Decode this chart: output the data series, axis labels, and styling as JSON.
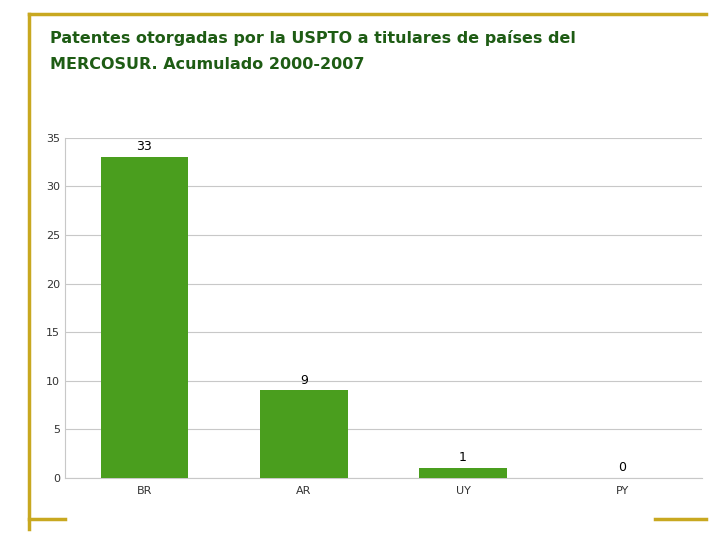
{
  "title_line1": "Patentes otorgadas por la USPTO a titulares de países del",
  "title_line2": "MERCOSUR. Acumulado 2000-2007",
  "categories": [
    "BR",
    "AR",
    "UY",
    "PY"
  ],
  "values": [
    33,
    9,
    1,
    0
  ],
  "bar_color": "#4a9e1e",
  "ylim": [
    0,
    35
  ],
  "yticks": [
    0,
    5,
    10,
    15,
    20,
    25,
    30,
    35
  ],
  "title_color": "#1e5c14",
  "label_color": "#000000",
  "tick_color": "#333333",
  "background_color": "#ffffff",
  "plot_bg_color": "#ffffff",
  "title_fontsize": 11.5,
  "bar_label_fontsize": 9,
  "tick_fontsize": 8,
  "grid_color": "#c8c8c8",
  "border_top_color": "#c8a820",
  "border_left_color": "#c8a820",
  "dash_color": "#c8a820"
}
